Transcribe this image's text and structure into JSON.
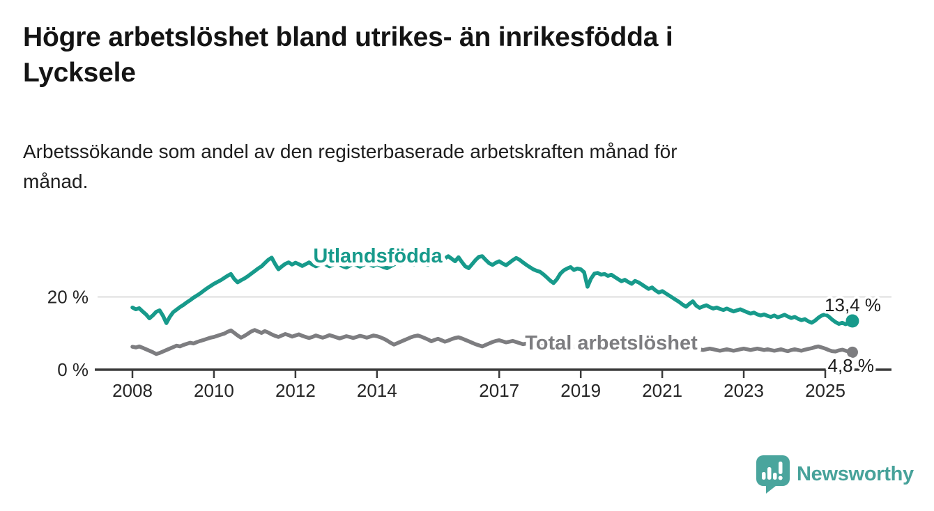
{
  "header": {
    "title_line1": "Högre arbetslöshet bland utrikes- än inrikesfödda i",
    "title_line2": "Lycksele",
    "subtitle_line1": "Arbetssökande som andel av den registerbaserade arbetskraften månad för",
    "subtitle_line2": "månad."
  },
  "footer": {
    "brand": "Newsworthy",
    "logo_icon": "newsworthy-speech-bubble-bar-chart-icon"
  },
  "colors": {
    "accent_teal": "#179a8b",
    "series_gray": "#7d7d80",
    "brand_teal": "#47a29a",
    "grid": "#dedede",
    "axis": "#3b3b3b",
    "text_dark": "#1c1c1c"
  },
  "chart_data": {
    "type": "line",
    "title": "Högre arbetslöshet bland utrikes- än inrikesfödda i Lycksele",
    "subtitle": "Arbetssökande som andel av den registerbaserade arbetskraften månad för månad.",
    "x_unit": "months",
    "x_start": "2008-01",
    "x_end": "2025-09",
    "xlim": [
      2008.0,
      2025.75
    ],
    "ylim": [
      0,
      33
    ],
    "grid": "single horizontal gridline at 20 %",
    "legend_position": "inline labels on lines",
    "x_ticks": [
      2008,
      2010,
      2012,
      2014,
      2017,
      2019,
      2021,
      2023,
      2025
    ],
    "y_ticks": [
      {
        "value": 0,
        "label": "0 %"
      },
      {
        "value": 20,
        "label": "20 %"
      }
    ],
    "series": [
      {
        "name": "Utlandsfödda",
        "color": "#179a8b",
        "end_label": "13,4 %",
        "end_value": 13.4,
        "values": [
          17.1,
          16.6,
          16.9,
          16.0,
          15.2,
          14.1,
          14.9,
          15.9,
          16.3,
          14.8,
          12.8,
          14.5,
          15.8,
          16.5,
          17.2,
          17.8,
          18.5,
          19.1,
          19.8,
          20.4,
          21.0,
          21.7,
          22.4,
          23.0,
          23.6,
          24.1,
          24.6,
          25.2,
          25.8,
          26.3,
          24.9,
          24.0,
          24.6,
          25.1,
          25.7,
          26.4,
          27.1,
          27.8,
          28.4,
          29.3,
          30.2,
          30.8,
          29.1,
          27.6,
          28.4,
          29.1,
          29.5,
          28.9,
          29.4,
          29.0,
          28.5,
          29.0,
          29.5,
          28.9,
          28.4,
          28.8,
          29.3,
          28.9,
          28.4,
          28.8,
          29.3,
          28.9,
          28.4,
          28.1,
          28.6,
          29.1,
          28.7,
          28.3,
          28.8,
          29.2,
          28.8,
          28.5,
          29.0,
          28.6,
          28.2,
          27.9,
          28.4,
          28.9,
          29.3,
          28.9,
          29.2,
          29.6,
          29.2,
          28.9,
          29.3,
          29.7,
          29.2,
          28.8,
          29.4,
          29.9,
          30.3,
          29.8,
          30.6,
          31.2,
          30.5,
          29.8,
          30.9,
          29.6,
          28.4,
          27.9,
          29.0,
          30.1,
          31.0,
          31.2,
          30.2,
          29.3,
          28.8,
          29.4,
          29.8,
          29.2,
          28.7,
          29.4,
          30.1,
          30.7,
          30.2,
          29.5,
          28.8,
          28.2,
          27.6,
          27.2,
          26.9,
          26.2,
          25.4,
          24.5,
          23.8,
          24.9,
          26.4,
          27.3,
          27.8,
          28.2,
          27.4,
          27.8,
          27.6,
          26.8,
          22.8,
          25.0,
          26.4,
          26.6,
          26.1,
          26.3,
          25.8,
          26.1,
          25.5,
          24.9,
          24.3,
          24.7,
          24.1,
          23.6,
          24.4,
          24.0,
          23.4,
          22.8,
          22.2,
          22.6,
          21.8,
          21.2,
          21.6,
          21.0,
          20.4,
          19.8,
          19.2,
          18.6,
          17.9,
          17.3,
          18.1,
          18.8,
          17.6,
          17.0,
          17.4,
          17.7,
          17.2,
          16.8,
          17.1,
          16.7,
          16.4,
          16.8,
          16.4,
          16.0,
          16.3,
          16.6,
          16.2,
          15.8,
          15.4,
          15.7,
          15.2,
          14.9,
          15.2,
          14.8,
          14.5,
          14.9,
          14.4,
          14.7,
          15.1,
          14.6,
          14.2,
          14.5,
          14.0,
          13.6,
          13.9,
          13.3,
          12.9,
          13.5,
          14.3,
          14.9,
          15.2,
          14.6,
          13.8,
          13.1,
          12.6,
          12.9,
          12.5,
          12.9,
          13.4
        ]
      },
      {
        "name": "Total arbetslöshet",
        "color": "#7d7d80",
        "end_label": "4,8 %",
        "end_value": 4.8,
        "values": [
          6.3,
          6.1,
          6.4,
          6.0,
          5.6,
          5.2,
          4.8,
          4.3,
          4.6,
          5.0,
          5.4,
          5.8,
          6.2,
          6.6,
          6.4,
          6.8,
          7.1,
          7.4,
          7.2,
          7.6,
          7.9,
          8.2,
          8.5,
          8.8,
          9.0,
          9.3,
          9.6,
          9.9,
          10.4,
          10.8,
          10.1,
          9.4,
          8.8,
          9.3,
          9.9,
          10.5,
          10.9,
          10.5,
          10.1,
          10.6,
          10.2,
          9.7,
          9.3,
          9.0,
          9.4,
          9.8,
          9.5,
          9.1,
          9.4,
          9.7,
          9.3,
          9.0,
          8.7,
          9.0,
          9.4,
          9.1,
          8.8,
          9.1,
          9.5,
          9.2,
          8.9,
          8.6,
          8.9,
          9.2,
          9.0,
          8.7,
          9.0,
          9.3,
          9.1,
          8.8,
          9.1,
          9.4,
          9.2,
          8.9,
          8.5,
          8.0,
          7.4,
          6.9,
          7.3,
          7.7,
          8.1,
          8.5,
          8.9,
          9.2,
          9.4,
          9.1,
          8.7,
          8.3,
          7.8,
          8.2,
          8.5,
          8.1,
          7.7,
          8.0,
          8.4,
          8.7,
          8.9,
          8.6,
          8.2,
          7.8,
          7.4,
          7.0,
          6.7,
          6.4,
          6.8,
          7.2,
          7.6,
          7.9,
          8.1,
          7.8,
          7.5,
          7.7,
          7.9,
          7.6,
          7.3,
          7.0,
          7.2,
          7.4,
          7.1,
          6.9,
          6.7,
          6.5,
          6.7,
          6.9,
          6.7,
          6.5,
          6.3,
          6.5,
          6.7,
          6.5,
          6.3,
          6.5,
          6.3,
          6.5,
          6.7,
          6.5,
          6.3,
          6.1,
          6.3,
          6.5,
          6.3,
          6.1,
          6.3,
          6.5,
          6.7,
          6.9,
          7.1,
          6.9,
          6.7,
          6.5,
          6.7,
          6.5,
          6.3,
          6.1,
          6.3,
          6.1,
          5.9,
          6.1,
          5.9,
          5.7,
          5.5,
          5.6,
          5.4,
          5.6,
          5.8,
          5.6,
          5.4,
          5.6,
          5.4,
          5.6,
          5.8,
          5.6,
          5.4,
          5.2,
          5.4,
          5.6,
          5.4,
          5.2,
          5.4,
          5.6,
          5.8,
          5.6,
          5.4,
          5.6,
          5.8,
          5.6,
          5.4,
          5.6,
          5.4,
          5.2,
          5.4,
          5.6,
          5.3,
          5.1,
          5.4,
          5.6,
          5.4,
          5.2,
          5.5,
          5.7,
          5.9,
          6.2,
          6.4,
          6.1,
          5.8,
          5.4,
          5.1,
          5.0,
          5.3,
          5.5,
          5.2,
          5.0,
          4.8
        ]
      }
    ]
  }
}
